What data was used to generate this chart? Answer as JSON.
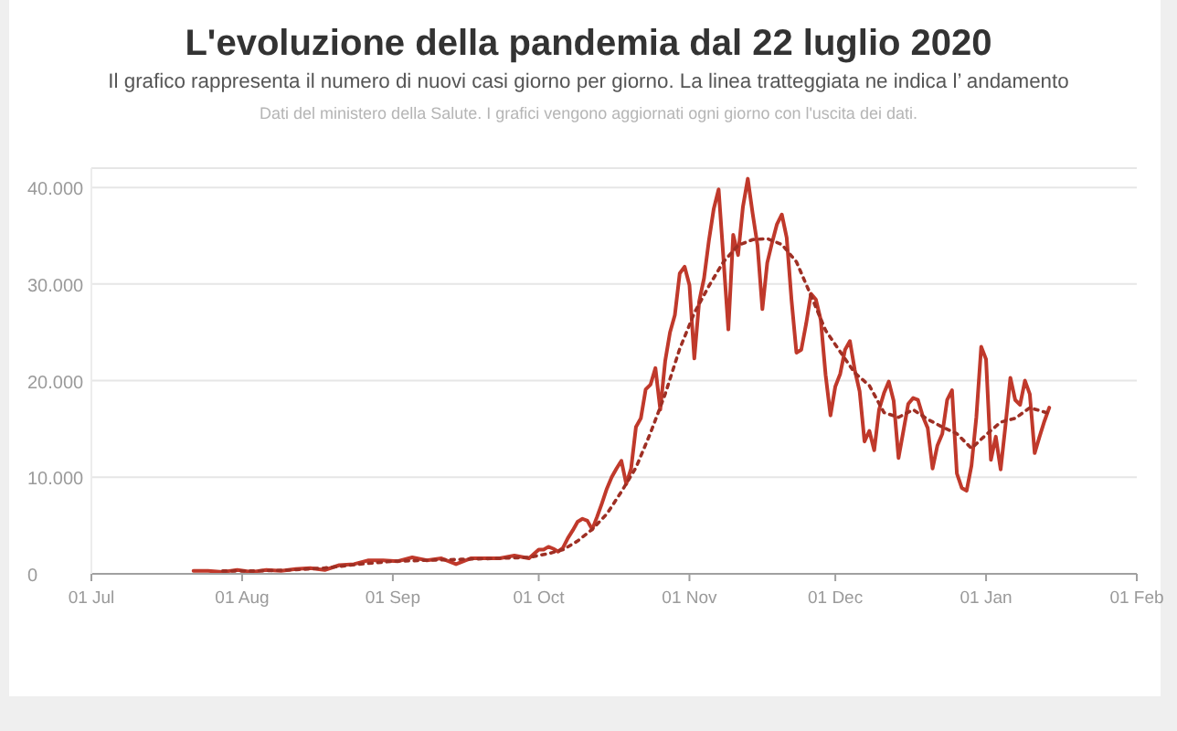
{
  "chart_data": {
    "type": "line",
    "title": "L'evoluzione della pandemia dal 22 luglio 2020",
    "subtitle": "Il grafico rappresenta il numero di nuovi casi giorno per giorno. La linea tratteggiata ne indica l’ andamento",
    "annotations": [
      "Dati del ministero della Salute. I grafici vengono aggiornati ogni giorno con l'uscita dei dati."
    ],
    "xlim": [
      "2020-07-01",
      "2021-02-01"
    ],
    "xticks": [
      {
        "value": "2020-07-01",
        "label": "01 Jul"
      },
      {
        "value": "2020-08-01",
        "label": "01 Aug"
      },
      {
        "value": "2020-09-01",
        "label": "01 Sep"
      },
      {
        "value": "2020-10-01",
        "label": "01 Oct"
      },
      {
        "value": "2020-11-01",
        "label": "01 Nov"
      },
      {
        "value": "2020-12-01",
        "label": "01 Dec"
      },
      {
        "value": "2021-01-01",
        "label": "01 Jan"
      },
      {
        "value": "2021-02-01",
        "label": "01 Feb"
      }
    ],
    "ylim": [
      0,
      42000
    ],
    "yticks": [
      0,
      {
        "value": 10000,
        "label": "10.000"
      },
      {
        "value": 20000,
        "label": "20.000"
      },
      {
        "value": 30000,
        "label": "30.000"
      },
      {
        "value": 40000,
        "label": "40.000"
      }
    ],
    "grid": "y",
    "marker": "none",
    "series": [
      {
        "color": "#c0392b",
        "line_style": "solid",
        "x": [
          "2020-07-22",
          "2020-07-25",
          "2020-07-28",
          "2020-07-31",
          "2020-08-03",
          "2020-08-06",
          "2020-08-09",
          "2020-08-12",
          "2020-08-15",
          "2020-08-18",
          "2020-08-21",
          "2020-08-24",
          "2020-08-27",
          "2020-08-30",
          "2020-09-02",
          "2020-09-05",
          "2020-09-08",
          "2020-09-11",
          "2020-09-14",
          "2020-09-17",
          "2020-09-20",
          "2020-09-23",
          "2020-09-26",
          "2020-09-29",
          "2020-10-01",
          "2020-10-02",
          "2020-10-03",
          "2020-10-04",
          "2020-10-05",
          "2020-10-06",
          "2020-10-07",
          "2020-10-08",
          "2020-10-09",
          "2020-10-10",
          "2020-10-11",
          "2020-10-12",
          "2020-10-13",
          "2020-10-14",
          "2020-10-15",
          "2020-10-16",
          "2020-10-17",
          "2020-10-18",
          "2020-10-19",
          "2020-10-20",
          "2020-10-21",
          "2020-10-22",
          "2020-10-23",
          "2020-10-24",
          "2020-10-25",
          "2020-10-26",
          "2020-10-27",
          "2020-10-28",
          "2020-10-29",
          "2020-10-30",
          "2020-10-31",
          "2020-11-01",
          "2020-11-02",
          "2020-11-03",
          "2020-11-04",
          "2020-11-05",
          "2020-11-06",
          "2020-11-07",
          "2020-11-08",
          "2020-11-09",
          "2020-11-10",
          "2020-11-11",
          "2020-11-12",
          "2020-11-13",
          "2020-11-14",
          "2020-11-15",
          "2020-11-16",
          "2020-11-17",
          "2020-11-18",
          "2020-11-19",
          "2020-11-20",
          "2020-11-21",
          "2020-11-22",
          "2020-11-23",
          "2020-11-24",
          "2020-11-25",
          "2020-11-26",
          "2020-11-27",
          "2020-11-28",
          "2020-11-29",
          "2020-11-30",
          "2020-12-01",
          "2020-12-02",
          "2020-12-03",
          "2020-12-04",
          "2020-12-05",
          "2020-12-06",
          "2020-12-07",
          "2020-12-08",
          "2020-12-09",
          "2020-12-10",
          "2020-12-11",
          "2020-12-12",
          "2020-12-13",
          "2020-12-14",
          "2020-12-15",
          "2020-12-16",
          "2020-12-17",
          "2020-12-18",
          "2020-12-19",
          "2020-12-20",
          "2020-12-21",
          "2020-12-22",
          "2020-12-23",
          "2020-12-24",
          "2020-12-25",
          "2020-12-26",
          "2020-12-27",
          "2020-12-28",
          "2020-12-29",
          "2020-12-30",
          "2020-12-31",
          "2021-01-01",
          "2021-01-02",
          "2021-01-03",
          "2021-01-04",
          "2021-01-05",
          "2021-01-06",
          "2021-01-07",
          "2021-01-08",
          "2021-01-09",
          "2021-01-10",
          "2021-01-11",
          "2021-01-12",
          "2021-01-13",
          "2021-01-14"
        ],
        "values": [
          300,
          300,
          200,
          400,
          200,
          400,
          300,
          500,
          600,
          400,
          900,
          1000,
          1400,
          1400,
          1300,
          1700,
          1400,
          1600,
          1000,
          1600,
          1600,
          1600,
          1900,
          1600,
          2500,
          2500,
          2800,
          2600,
          2300,
          2700,
          3700,
          4500,
          5400,
          5700,
          5500,
          4600,
          5900,
          7300,
          8800,
          10000,
          10900,
          11700,
          9300,
          10900,
          15200,
          16100,
          19100,
          19600,
          21300,
          17000,
          22000,
          25000,
          26800,
          31100,
          31800,
          29900,
          22300,
          28200,
          30600,
          34500,
          37800,
          39800,
          32600,
          25300,
          35100,
          33000,
          38000,
          40900,
          37300,
          34000,
          27400,
          32200,
          34300,
          36200,
          37200,
          34800,
          28300,
          22900,
          23200,
          25900,
          29000,
          28400,
          26300,
          20600,
          16400,
          19400,
          20700,
          23200,
          24100,
          21100,
          18900,
          13700,
          14800,
          12800,
          17000,
          18700,
          19900,
          17900,
          12000,
          14800,
          17600,
          18200,
          18000,
          16300,
          15100,
          10900,
          13300,
          14500,
          18000,
          19000,
          10400,
          8900,
          8600,
          11200,
          16200,
          23500,
          22200,
          11800,
          14200,
          10800,
          15400,
          20300,
          18000,
          17500,
          20000,
          18600,
          12500,
          14200,
          15800,
          17200
        ]
      },
      {
        "color": "#9e2f24",
        "line_style": "dotted",
        "x": [
          "2020-07-28",
          "2020-08-04",
          "2020-08-11",
          "2020-08-18",
          "2020-08-25",
          "2020-09-01",
          "2020-09-08",
          "2020-09-15",
          "2020-09-22",
          "2020-09-29",
          "2020-10-03",
          "2020-10-06",
          "2020-10-09",
          "2020-10-12",
          "2020-10-15",
          "2020-10-18",
          "2020-10-21",
          "2020-10-24",
          "2020-10-27",
          "2020-10-30",
          "2020-11-02",
          "2020-11-05",
          "2020-11-08",
          "2020-11-11",
          "2020-11-14",
          "2020-11-17",
          "2020-11-20",
          "2020-11-23",
          "2020-11-26",
          "2020-11-29",
          "2020-12-02",
          "2020-12-05",
          "2020-12-08",
          "2020-12-11",
          "2020-12-14",
          "2020-12-17",
          "2020-12-20",
          "2020-12-23",
          "2020-12-26",
          "2020-12-29",
          "2021-01-01",
          "2021-01-04",
          "2021-01-07",
          "2021-01-10",
          "2021-01-14"
        ],
        "values": [
          300,
          300,
          400,
          600,
          1000,
          1300,
          1400,
          1500,
          1600,
          1700,
          2100,
          2500,
          3400,
          4600,
          6200,
          8500,
          11000,
          14600,
          18600,
          23300,
          27000,
          29800,
          32300,
          34000,
          34600,
          34700,
          34100,
          32300,
          28800,
          25200,
          23000,
          20800,
          19500,
          16700,
          16200,
          17000,
          16000,
          15200,
          14500,
          13000,
          14400,
          15700,
          16100,
          17200,
          16600
        ]
      }
    ]
  }
}
